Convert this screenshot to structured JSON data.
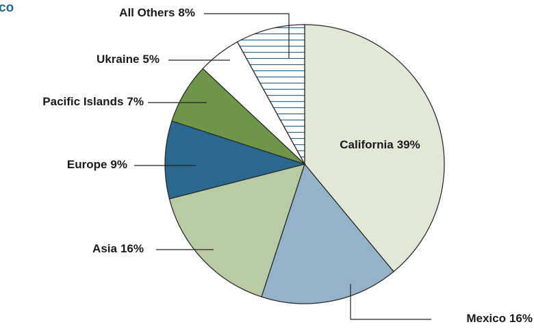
{
  "chart_data": {
    "type": "pie",
    "title": "co",
    "categories": [
      "California",
      "Mexico",
      "Asia",
      "Europe",
      "Pacific Islands",
      "Ukraine",
      "All Others"
    ],
    "values": [
      39,
      16,
      16,
      9,
      7,
      5,
      8
    ],
    "value_labels": [
      "39%",
      "16%",
      "16%",
      "9%",
      "7%",
      "5%",
      "8%"
    ],
    "colors": [
      "#e2e8d8",
      "#94b3c8",
      "#b8cba4",
      "#2a6890",
      "#6e9648",
      "#ffffff",
      "hatch"
    ],
    "hatch_color": "#2a6890"
  }
}
